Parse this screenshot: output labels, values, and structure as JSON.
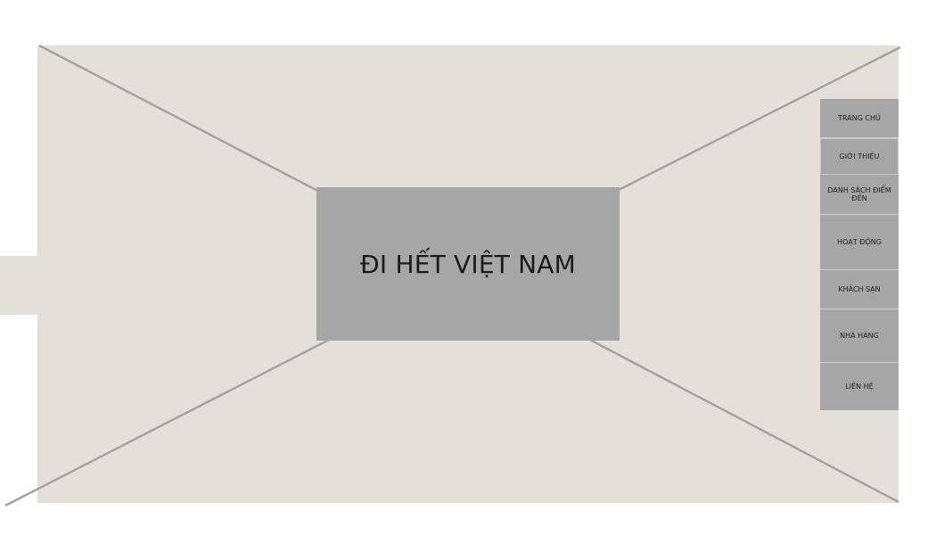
{
  "hero": {
    "title": "ĐI HẾT VIỆT NAM"
  },
  "nav": {
    "items": [
      {
        "label": "TRANG CHỦ"
      },
      {
        "label": "GIỚI THIỆU"
      },
      {
        "label": "DANH SÁCH ĐIỂM ĐẾN"
      },
      {
        "label": "HOẠT ĐỘNG"
      },
      {
        "label": "KHÁCH SẠN"
      },
      {
        "label": "NHÀ HÀNG"
      },
      {
        "label": "LIÊN HỆ"
      }
    ]
  },
  "colors": {
    "placeholder_bg": "#e2e0d9",
    "block_gray": "#a6a6a6",
    "line_gray": "#a3a3a3"
  }
}
